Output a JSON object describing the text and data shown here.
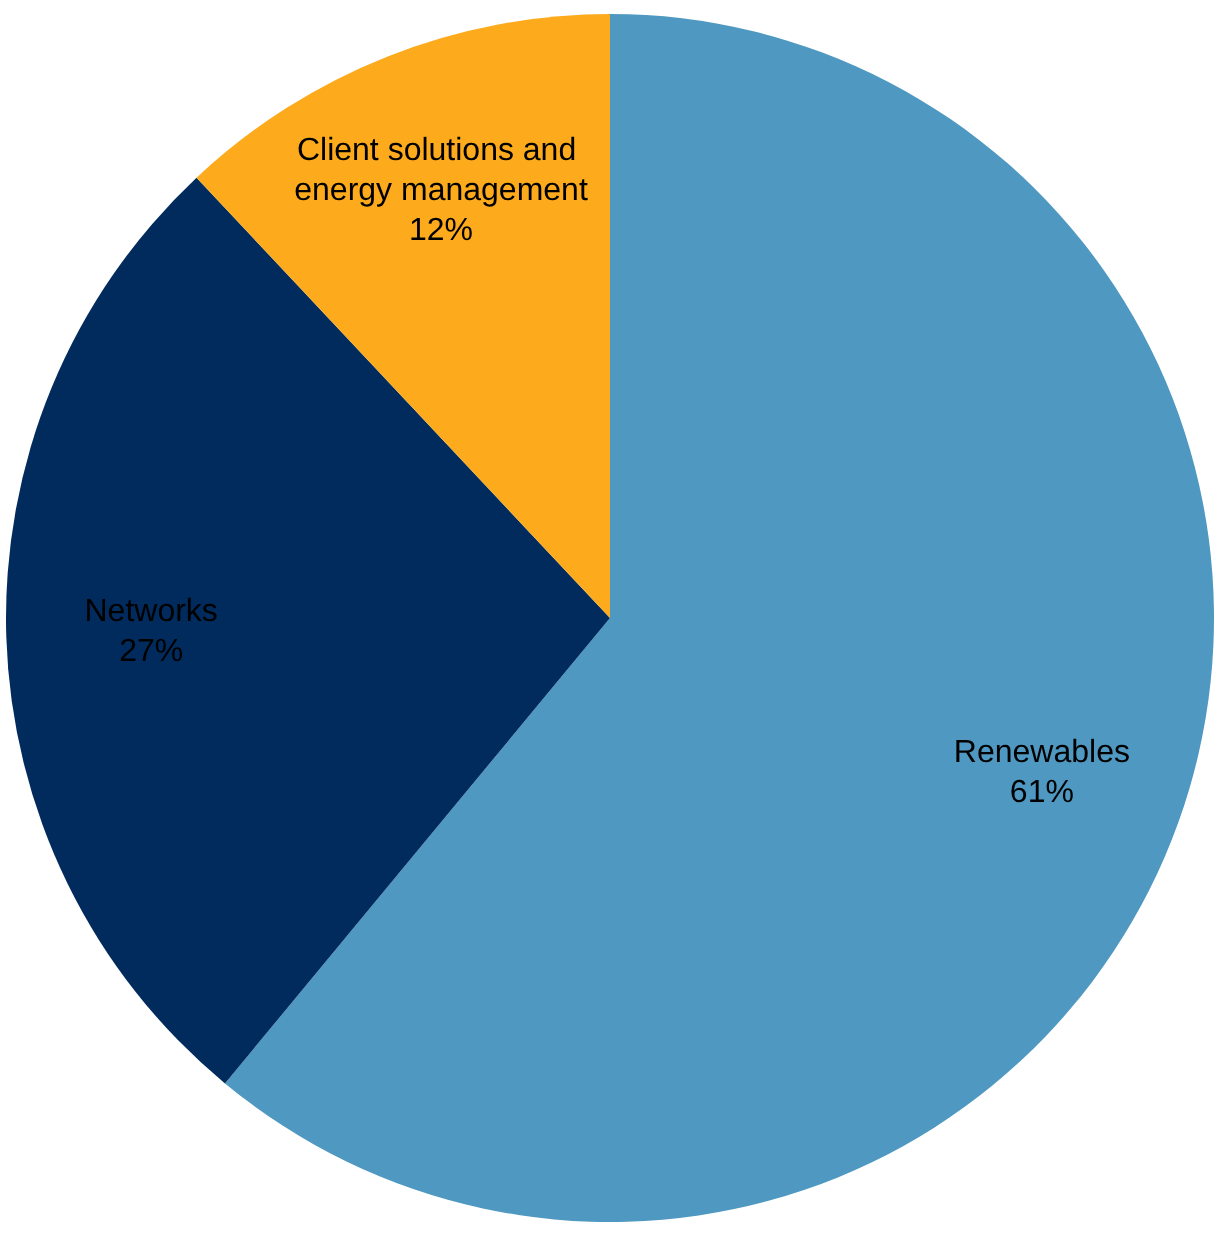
{
  "chart_data": {
    "type": "pie",
    "categories": [
      "Renewables",
      "Networks",
      "Client solutions and energy management"
    ],
    "values": [
      61,
      27,
      12
    ],
    "colors": [
      "#4e98c1",
      "#002b5c",
      "#fdab1c"
    ],
    "value_labels": [
      "61%",
      "27%",
      "12%"
    ],
    "legend": false
  }
}
